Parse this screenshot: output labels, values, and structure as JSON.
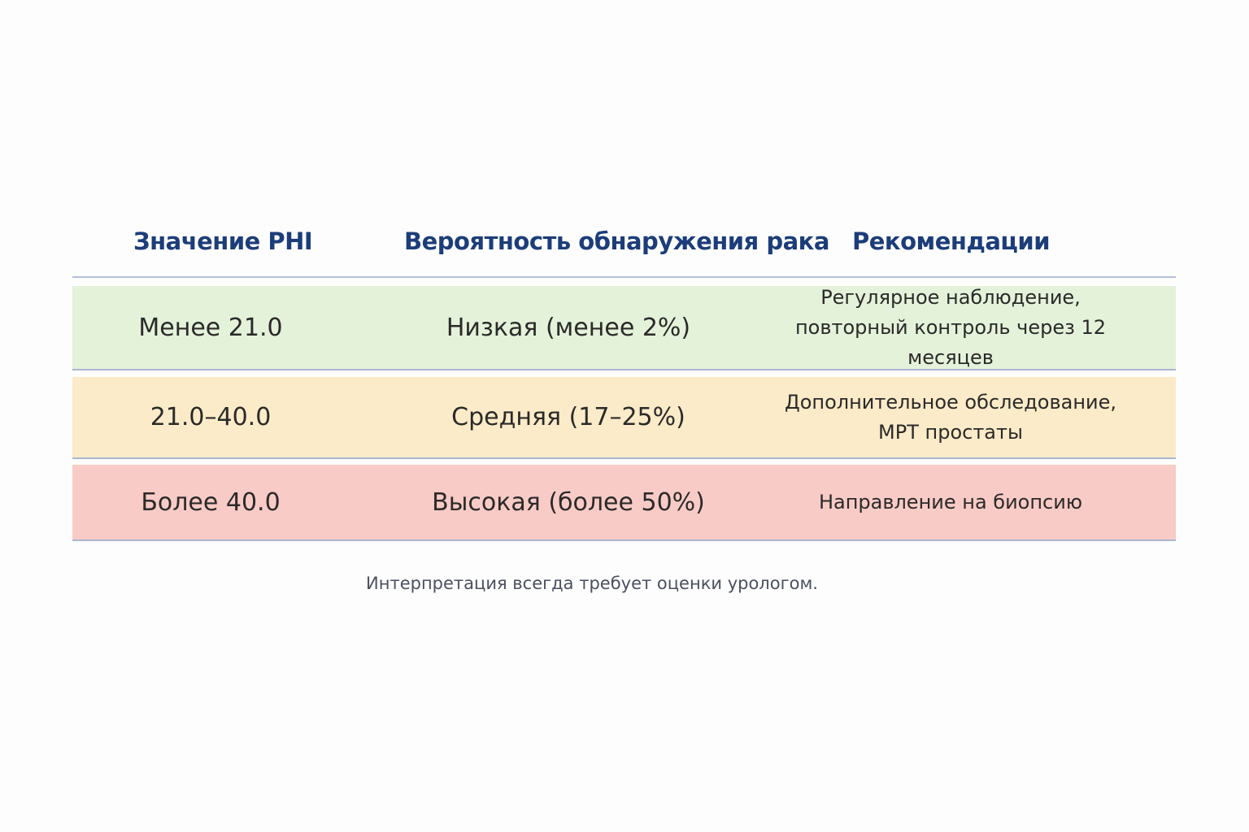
{
  "table": {
    "header": [
      "Значение PHI",
      "Вероятность обнаружения рака",
      "Рекомендации"
    ],
    "rows": [
      [
        "Менее 21.0",
        "Низкая (менее 2%)",
        [
          "Регулярное наблюдение,",
          "повторный контроль через 12 месяцев"
        ]
      ],
      [
        "21.0–40.0",
        "Средняя (17–25%)",
        [
          "Дополнительное обследование,",
          "МРТ простаты"
        ]
      ],
      [
        "Более 40.0",
        "Высокая (более 50%)",
        [
          "Направление на биопсию"
        ]
      ]
    ]
  },
  "footnote": "Интерпретация всегда требует оценки урологом."
}
